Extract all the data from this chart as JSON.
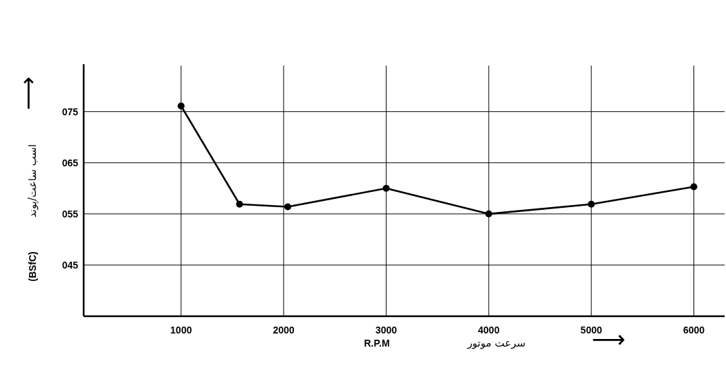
{
  "chart_data": {
    "type": "line",
    "xlabel": "R.P.M",
    "ylabel": "(BSfC)",
    "annotations": [
      "سرعت موتور",
      "⟶",
      "اسب ساعت/پوند",
      "⟶"
    ],
    "x": [
      1000,
      1570,
      2040,
      3000,
      4000,
      5000,
      6000
    ],
    "values": [
      76.1,
      56.9,
      56.4,
      60,
      55,
      56.9,
      60.3
    ],
    "color": "#000000",
    "marker": "circle",
    "grid": true,
    "xlim": [
      50,
      6300
    ],
    "ylim": [
      35,
      84
    ],
    "xticks": [
      1000,
      2000,
      3000,
      4000,
      5000,
      6000
    ],
    "yticks": [
      {
        "value": 45,
        "label": "045"
      },
      {
        "value": 55,
        "label": "055"
      },
      {
        "value": 65,
        "label": "065"
      },
      {
        "value": 75,
        "label": "075"
      }
    ]
  }
}
